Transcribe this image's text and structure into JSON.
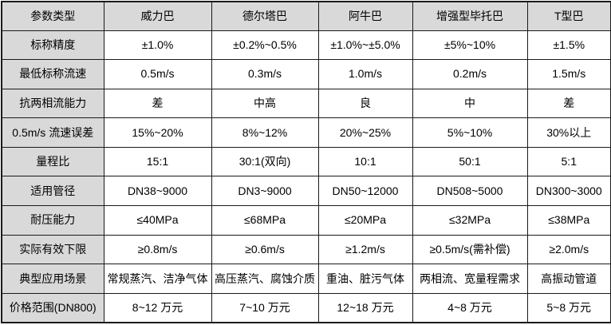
{
  "page": {
    "background_color": "#ffffff",
    "header_bg_color": "#d9d9d9",
    "border_color": "#1a1a1a",
    "text_color": "#000000"
  },
  "table": {
    "columns": [
      "参数类型",
      "威力巴",
      "德尔塔巴",
      "阿牛巴",
      "增强型毕托巴",
      "T型巴"
    ],
    "rows": [
      {
        "label": "标称精度",
        "values": [
          "±1.0%",
          "±0.2%~0.5%",
          "±1.0%~±5.0%",
          "±5%~10%",
          "±1.5%"
        ]
      },
      {
        "label": "最低标称流速",
        "values": [
          "0.5m/s",
          "0.3m/s",
          "1.0m/s",
          "0.2m/s",
          "1.5m/s"
        ]
      },
      {
        "label": "抗两相流能力",
        "values": [
          "差",
          "中高",
          "良",
          "中",
          "差"
        ]
      },
      {
        "label": "0.5m/s 流速误差",
        "values": [
          "15%~20%",
          "8%~12%",
          "20%~25%",
          "5%~10%",
          "30%以上"
        ]
      },
      {
        "label": "量程比",
        "values": [
          "15:1",
          "30:1(双向)",
          "10:1",
          "50:1",
          "5:1"
        ]
      },
      {
        "label": "适用管径",
        "values": [
          "DN38~9000",
          "DN3~9000",
          "DN50~12000",
          "DN508~5000",
          "DN300~3000"
        ]
      },
      {
        "label": "耐压能力",
        "values": [
          "≤40MPa",
          "≤68MPa",
          "≤20MPa",
          "≤32MPa",
          "≤38MPa"
        ]
      },
      {
        "label": "实际有效下限",
        "values": [
          "≥0.8m/s",
          "≥0.6m/s",
          "≥1.2m/s",
          "≥0.5m/s(需补偿)",
          "≥2.0m/s"
        ]
      },
      {
        "label": "典型应用场景",
        "values": [
          "常规蒸汽、洁净气体",
          "高压蒸汽、腐蚀介质",
          "重油、脏污气体",
          "两相流、宽量程需求",
          "高振动管道"
        ]
      },
      {
        "label": "价格范围(DN800)",
        "values": [
          "8~12 万元",
          "7~10 万元",
          "12~18 万元",
          "4~8 万元",
          "5~8 万元"
        ]
      }
    ]
  }
}
